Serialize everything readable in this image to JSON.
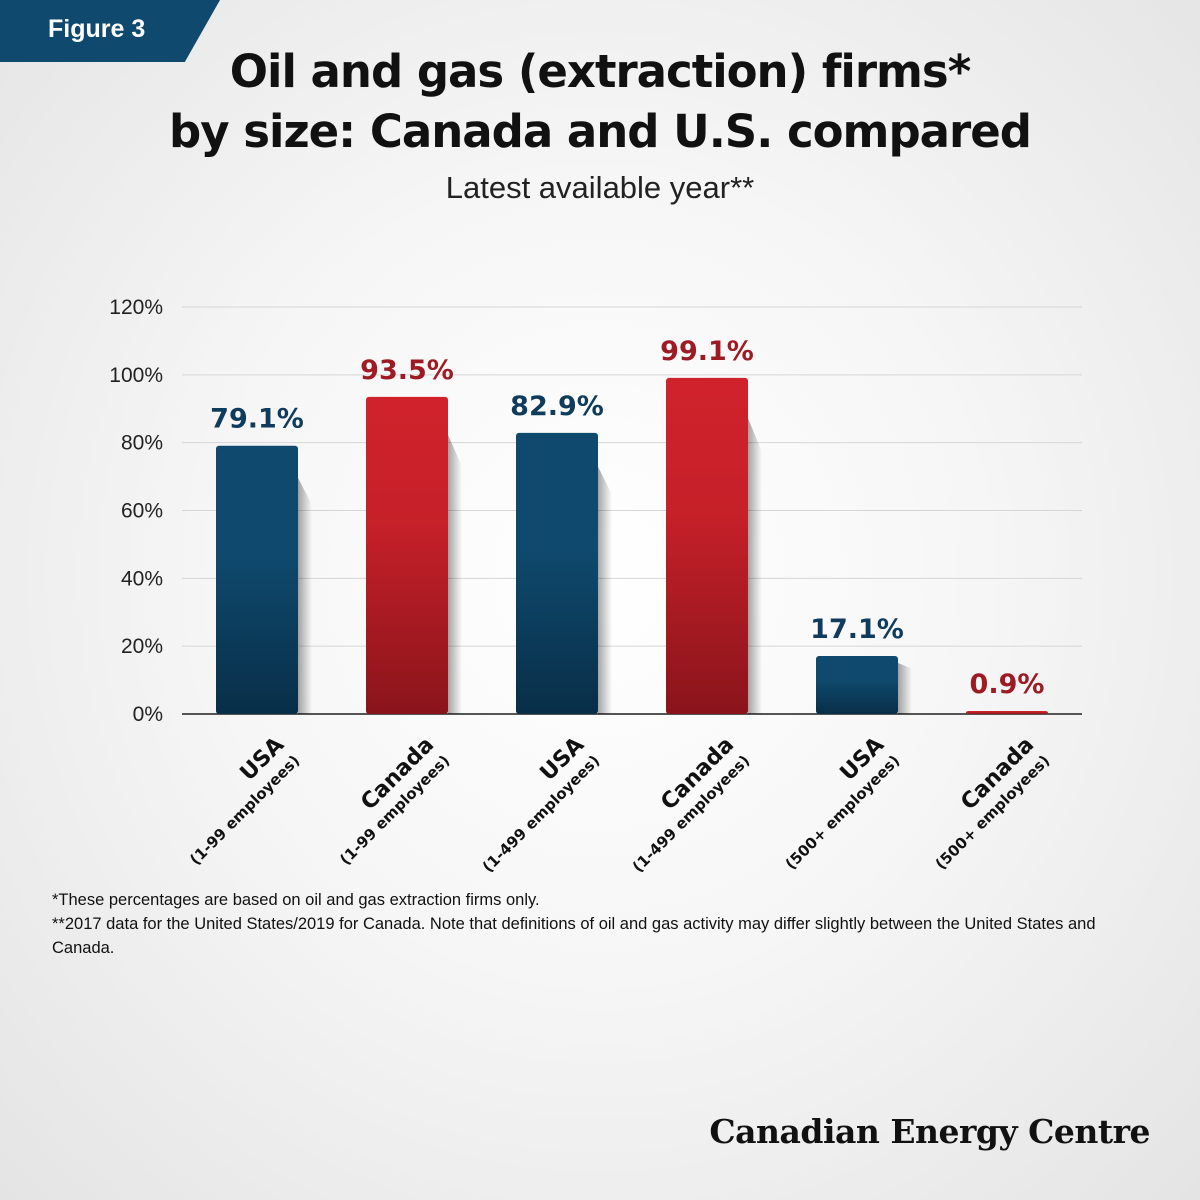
{
  "figure_label": "Figure 3",
  "title_lines": [
    "Oil and gas (extraction) firms*",
    "by size: Canada and U.S. compared"
  ],
  "subtitle": "Latest available year**",
  "colors": {
    "usa": "#0f4a6e",
    "canada": "#d0222c",
    "usa_label": "#0f3b5c",
    "canada_label": "#9e1b24"
  },
  "chart_data": {
    "type": "bar",
    "title": "Oil and gas (extraction) firms* by size: Canada and U.S. compared",
    "subtitle": "Latest available year**",
    "categories": [
      {
        "country": "USA",
        "size": "(1-99 employees)"
      },
      {
        "country": "Canada",
        "size": "(1-99 employees)"
      },
      {
        "country": "USA",
        "size": "(1-499 employees)"
      },
      {
        "country": "Canada",
        "size": "(1-499 employees)"
      },
      {
        "country": "USA",
        "size": "(500+ employees)"
      },
      {
        "country": "Canada",
        "size": "(500+ employees)"
      }
    ],
    "values": [
      79.1,
      93.5,
      82.9,
      99.1,
      17.1,
      0.9
    ],
    "value_labels": [
      "79.1%",
      "93.5%",
      "82.9%",
      "99.1%",
      "17.1%",
      "0.9%"
    ],
    "yticks": [
      "0%",
      "20%",
      "40%",
      "60%",
      "80%",
      "100%",
      "120%"
    ],
    "ylim": [
      0,
      120
    ],
    "grid": true,
    "legend": "none"
  },
  "footnotes": [
    "*These percentages are based on oil and gas extraction firms only.",
    "**2017 data for the United States/2019 for Canada. Note that definitions of oil and gas activity may differ slightly between the United States and Canada."
  ],
  "logo_text": "Canadian Energy Centre"
}
